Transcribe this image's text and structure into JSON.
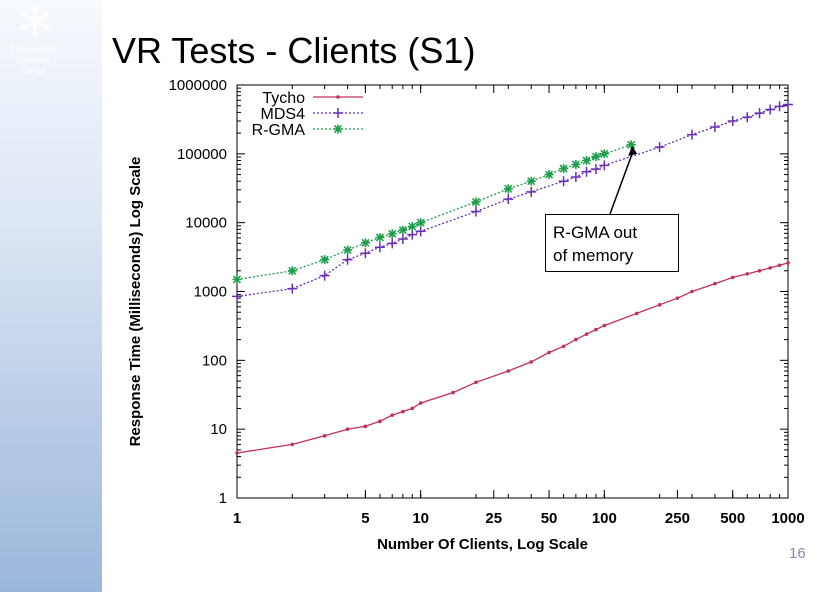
{
  "slide": {
    "logo_lines": [
      "Distributed",
      "Systems",
      "Group"
    ],
    "title": "VR Tests - Clients (S1)",
    "page_number": "16"
  },
  "callout": {
    "lines": [
      "R-GMA out",
      "of memory"
    ]
  },
  "colors": {
    "tycho": "#c0305a",
    "mds4": "#6b2fb3",
    "rgma": "#1f9e4c"
  },
  "chart_data": {
    "type": "line",
    "title": "",
    "xlabel": "Number Of Clients, Log Scale",
    "ylabel": "Response Time (Milliseconds) Log Scale",
    "xscale": "log",
    "yscale": "log",
    "xlim": [
      1,
      1000
    ],
    "ylim": [
      1,
      1000000
    ],
    "xticks": [
      1,
      5,
      10,
      25,
      50,
      100,
      250,
      500,
      1000
    ],
    "xtick_labels": [
      "1",
      "5",
      "10",
      "25",
      "50",
      "100",
      "250",
      "500",
      "1000"
    ],
    "yticks": [
      1,
      10,
      100,
      1000,
      10000,
      100000,
      1000000
    ],
    "ytick_labels": [
      "1",
      "10",
      "100",
      "1000",
      "10000",
      "100000",
      "1000000"
    ],
    "legend_position": "top-left",
    "series": [
      {
        "name": "Tycho",
        "x": [
          1,
          2,
          3,
          4,
          5,
          6,
          7,
          8,
          9,
          10,
          15,
          20,
          30,
          40,
          50,
          60,
          70,
          80,
          90,
          100,
          150,
          200,
          250,
          300,
          400,
          500,
          600,
          700,
          800,
          900,
          1000
        ],
        "y": [
          4.5,
          6,
          8,
          10,
          11,
          13,
          16,
          18,
          20,
          24,
          34,
          48,
          70,
          95,
          130,
          160,
          200,
          240,
          280,
          320,
          480,
          640,
          800,
          1000,
          1300,
          1600,
          1800,
          2000,
          2200,
          2400,
          2600
        ]
      },
      {
        "name": "MDS4",
        "x": [
          1,
          2,
          3,
          4,
          5,
          6,
          7,
          8,
          9,
          10,
          20,
          30,
          40,
          60,
          70,
          80,
          90,
          100,
          200,
          300,
          400,
          500,
          600,
          700,
          800,
          900,
          1000
        ],
        "y": [
          850,
          1100,
          1700,
          2900,
          3600,
          4400,
          5000,
          5800,
          6700,
          7500,
          14500,
          22000,
          28000,
          40000,
          46000,
          55000,
          60000,
          68000,
          125000,
          190000,
          245000,
          300000,
          340000,
          390000,
          440000,
          490000,
          520000
        ]
      },
      {
        "name": "R-GMA",
        "x": [
          1,
          2,
          3,
          4,
          5,
          6,
          7,
          8,
          9,
          10,
          20,
          30,
          40,
          50,
          60,
          70,
          80,
          90,
          100,
          140
        ],
        "y": [
          1500,
          2000,
          2900,
          4000,
          5100,
          6100,
          6900,
          7800,
          8800,
          10000,
          20000,
          31000,
          40000,
          50000,
          61000,
          70000,
          80000,
          91000,
          100000,
          135000
        ]
      }
    ]
  }
}
